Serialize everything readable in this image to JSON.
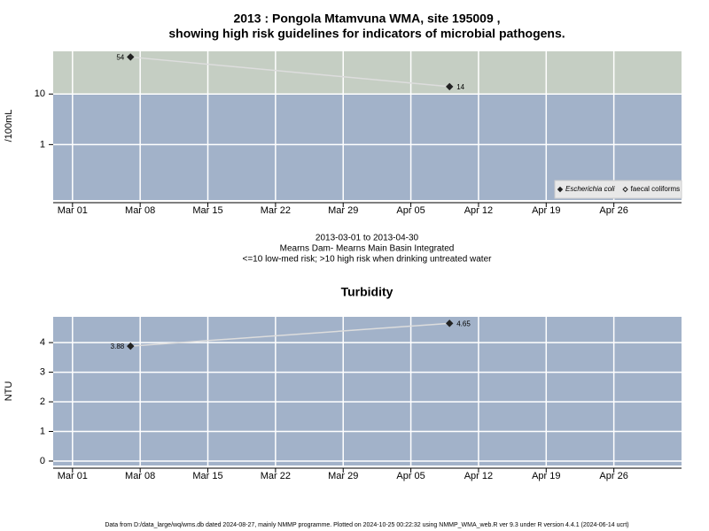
{
  "title_lines": [
    "2013 : Pongola Mtamvuna WMA, site 195009 ,",
    "showing high risk guidelines for indicators of microbial pathogens."
  ],
  "notes": [
    "2013-03-01 to 2013-04-30",
    "Mearns Dam- Mearns Main Basin Integrated",
    "<=10 low-med risk; >10 high risk when drinking untreated water"
  ],
  "footer": "Data from D:/data_large/wq/wms.db dated 2024-08-27, mainly NMMP programme. Plotted on 2024-10-25 00:22:32 using NMMP_WMA_web.R ver 9.3 under R version 4.4.1 (2024-06-14 ucrt)",
  "chart_data": [
    {
      "type": "line",
      "ylabel": "/100mL",
      "log_y": true,
      "background": "#a2b2c9",
      "threshold": 10,
      "threshold_color": "#c5cec3",
      "grid": true,
      "xlim": [
        "Feb 27",
        "May 03"
      ],
      "xticks": [
        "Mar 01",
        "Mar 08",
        "Mar 15",
        "Mar 22",
        "Mar 29",
        "Apr 05",
        "Apr 12",
        "Apr 19",
        "Apr 26"
      ],
      "ylim": [
        0.08,
        70
      ],
      "yticks": [
        1,
        10
      ],
      "x": [
        "Mar 07",
        "Apr 09"
      ],
      "series": [
        {
          "name": "Escherichia coli",
          "color": "#222222",
          "line_color": "#dddddd",
          "filled": true,
          "values": [
            54,
            14
          ]
        },
        {
          "name": "faecal coliforms",
          "color": "#222222",
          "line_color": "#dddddd",
          "filled": false,
          "values": [
            null,
            null
          ]
        }
      ],
      "legend": "bottom-right"
    },
    {
      "type": "line",
      "title": "Turbidity",
      "ylabel": "NTU",
      "log_y": false,
      "background": "#a2b2c9",
      "grid": true,
      "xlim": [
        "Feb 27",
        "May 03"
      ],
      "xticks": [
        "Mar 01",
        "Mar 08",
        "Mar 15",
        "Mar 22",
        "Mar 29",
        "Apr 05",
        "Apr 12",
        "Apr 19",
        "Apr 26"
      ],
      "ylim": [
        -0.15,
        4.87
      ],
      "yticks": [
        0,
        1,
        2,
        3,
        4
      ],
      "x": [
        "Mar 07",
        "Apr 09"
      ],
      "series": [
        {
          "name": "Turbidity",
          "color": "#222222",
          "line_color": "#dddddd",
          "filled": true,
          "values": [
            3.88,
            4.65
          ]
        }
      ]
    }
  ]
}
